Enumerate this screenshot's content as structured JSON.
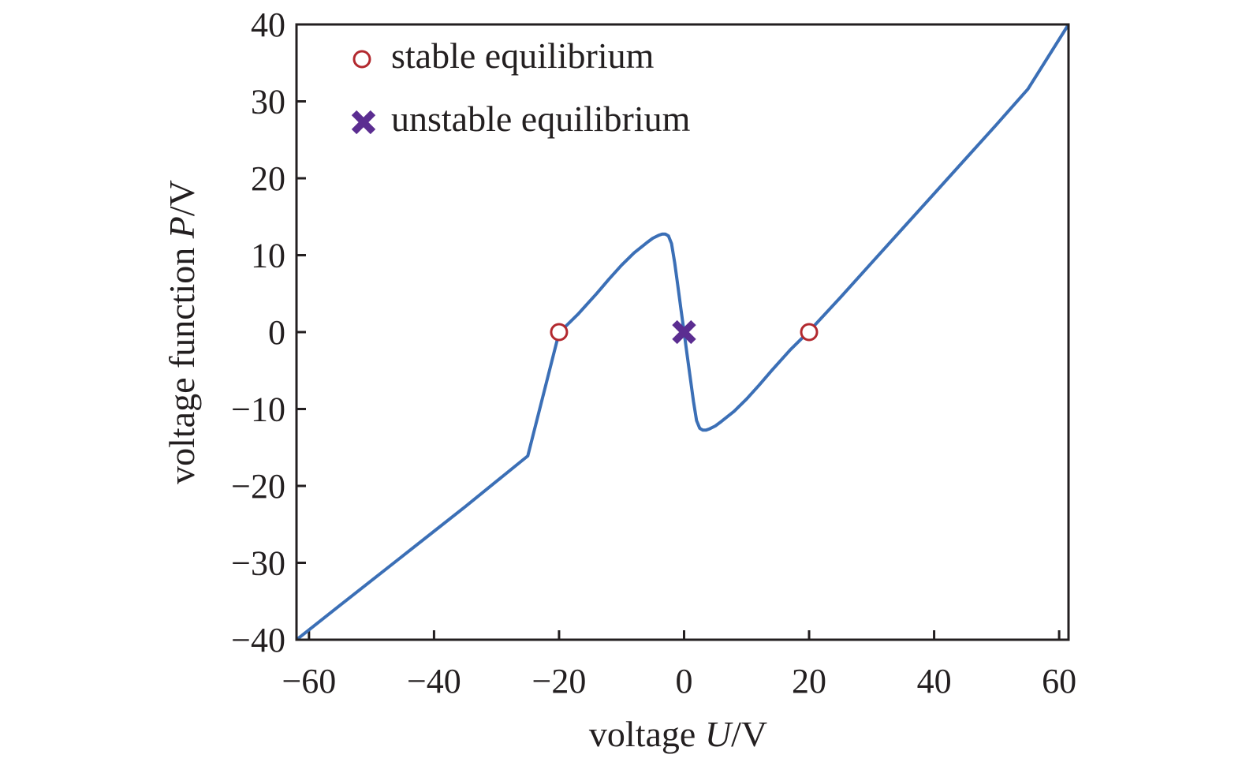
{
  "chart_data": {
    "type": "line",
    "title": "",
    "xlabel": {
      "prefix": "voltage ",
      "var": "U",
      "unit": "/V"
    },
    "ylabel": {
      "prefix": "voltage function ",
      "var": "P",
      "unit": "/V"
    },
    "xlim": [
      -62,
      61.5
    ],
    "ylim": [
      -40,
      40
    ],
    "xticks": [
      -60,
      -40,
      -20,
      0,
      20,
      40,
      60
    ],
    "yticks": [
      -40,
      -30,
      -20,
      -10,
      0,
      10,
      20,
      30,
      40
    ],
    "xtick_labels": [
      "−60",
      "−40",
      "−20",
      "0",
      "20",
      "40",
      "60"
    ],
    "ytick_labels": [
      "−40",
      "−30",
      "−20",
      "−10",
      "0",
      "10",
      "20",
      "30",
      "40"
    ],
    "grid": false,
    "legend_position": "top-left",
    "series": [
      {
        "kind": "line",
        "color": "#3b6fb6",
        "points": [
          [
            -62,
            -40
          ],
          [
            -55,
            -35.5
          ],
          [
            -50,
            -32.3
          ],
          [
            -45,
            -29.1
          ],
          [
            -40,
            -25.9
          ],
          [
            -35,
            -22.7
          ],
          [
            -30,
            -19.4
          ],
          [
            -25,
            -16.1
          ],
          [
            -20,
            -0.1
          ],
          [
            -17,
            2.3
          ],
          [
            -14,
            5.0
          ],
          [
            -12,
            6.9
          ],
          [
            -10,
            8.7
          ],
          [
            -8,
            10.3
          ],
          [
            -6,
            11.6
          ],
          [
            -5,
            12.2
          ],
          [
            -4,
            12.6
          ],
          [
            -3.5,
            12.75
          ],
          [
            -3,
            12.75
          ],
          [
            -2.5,
            12.5
          ],
          [
            -2,
            11.5
          ],
          [
            -1.5,
            9.0
          ],
          [
            -1,
            6.0
          ],
          [
            -0.5,
            3.0
          ],
          [
            0,
            0
          ],
          [
            0.5,
            -3.0
          ],
          [
            1,
            -6.0
          ],
          [
            1.5,
            -9.0
          ],
          [
            2,
            -11.5
          ],
          [
            2.5,
            -12.5
          ],
          [
            3,
            -12.75
          ],
          [
            3.5,
            -12.75
          ],
          [
            4,
            -12.6
          ],
          [
            5,
            -12.2
          ],
          [
            6,
            -11.6
          ],
          [
            8,
            -10.3
          ],
          [
            10,
            -8.7
          ],
          [
            12,
            -6.9
          ],
          [
            14,
            -5.0
          ],
          [
            17,
            -2.3
          ],
          [
            20,
            0.1
          ],
          [
            25,
            4.5
          ],
          [
            30,
            9.0
          ],
          [
            35,
            13.5
          ],
          [
            40,
            18.0
          ],
          [
            45,
            22.5
          ],
          [
            50,
            27.0
          ],
          [
            55,
            31.6
          ],
          [
            61.5,
            40
          ]
        ]
      }
    ],
    "markers": {
      "stable": {
        "label": "stable equilibrium",
        "color": "#b2282e",
        "points": [
          [
            -20,
            0
          ],
          [
            20,
            0
          ]
        ]
      },
      "unstable": {
        "label": "unstable equilibrium",
        "color": "#5b2d91",
        "points": [
          [
            0,
            0
          ]
        ]
      }
    }
  }
}
